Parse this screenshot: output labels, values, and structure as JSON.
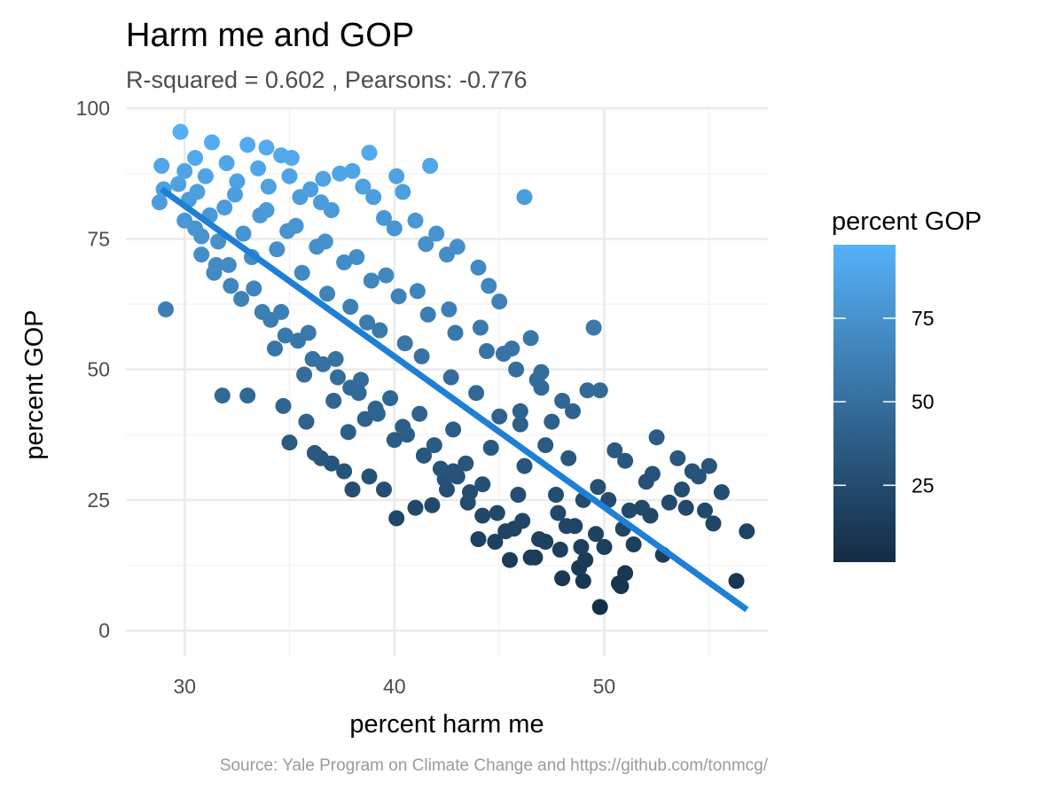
{
  "chart_data": {
    "type": "scatter",
    "title": "Harm me and GOP",
    "subtitle": "R-squared =  0.602 , Pearsons: -0.776",
    "xlabel": "percent harm me",
    "ylabel": "percent GOP",
    "caption": "Source: Yale Program on Climate Change and https://github.com/tonmcg/",
    "xlim": [
      27.2,
      57.8
    ],
    "ylim": [
      -4.9,
      100.2
    ],
    "xticks": [
      30,
      40,
      50
    ],
    "yticks": [
      0,
      25,
      50,
      75,
      100
    ],
    "grid": true,
    "legend": {
      "title": "percent GOP",
      "placement": "right",
      "min": 2,
      "max": 97,
      "ticks": [
        25,
        50,
        75
      ],
      "color_low": "#132B43",
      "color_high": "#56B1F7"
    },
    "trend_line": {
      "x": [
        28.9,
        56.8
      ],
      "y": [
        84.5,
        4.0
      ],
      "color": "#1e7fd6"
    },
    "points": {
      "x": [
        29.8,
        28.9,
        31.3,
        33.0,
        33.9,
        34.6,
        35.1,
        36.6,
        37.4,
        38.0,
        38.5,
        38.8,
        39.0,
        40.1,
        40.4,
        41.7,
        46.2,
        28.8,
        29.0,
        30.0,
        30.5,
        31.0,
        32.0,
        32.5,
        33.5,
        34.0,
        35.0,
        35.5,
        36.0,
        36.5,
        37.0,
        39.5,
        40.0,
        41.0,
        41.5,
        42.0,
        42.5,
        43.0,
        44.0,
        44.5,
        45.0,
        46.5,
        47.0,
        48.0,
        49.2,
        49.8,
        50.5,
        51.0,
        52.5,
        53.5,
        54.5,
        55.0,
        55.2,
        56.8,
        56.3,
        54.8,
        53.7,
        52.0,
        51.2,
        50.8,
        49.8,
        49.0,
        48.0,
        46.5,
        45.5,
        44.8,
        44.0,
        43.5,
        42.5,
        41.8,
        41.0,
        40.1,
        39.5,
        38.8,
        37.6,
        36.5,
        35.0,
        33.0,
        31.8,
        29.1,
        49.5,
        47.5,
        46.8,
        46.0,
        45.2,
        48.5,
        50.2,
        51.8,
        52.3,
        48.2,
        47.7,
        50.0,
        52.2,
        49.7,
        49.0,
        48.9,
        51.0,
        50.7,
        47.2,
        46.7,
        45.3,
        44.2,
        43.0,
        42.2,
        38.0,
        37.0,
        36.2,
        34.7,
        35.8,
        37.8,
        30.5,
        30.8,
        31.5,
        32.2,
        31.2,
        30.2,
        30.0,
        31.6,
        32.8,
        33.2,
        34.4,
        35.6,
        36.8,
        37.9,
        38.7,
        39.3,
        40.5,
        41.3,
        42.7,
        43.9,
        45.0,
        46.0,
        47.2,
        48.3,
        29.7,
        30.6,
        31.9,
        33.6,
        34.9,
        36.3,
        37.6,
        38.9,
        40.2,
        41.6,
        42.9,
        44.4,
        45.8,
        47.0,
        32.4,
        33.9,
        35.3,
        36.7,
        38.2,
        39.6,
        41.1,
        42.6,
        44.1,
        45.6,
        30.8,
        32.1,
        33.3,
        34.6,
        35.9,
        37.2,
        38.4,
        39.8,
        41.2,
        42.8,
        44.6,
        46.2,
        31.4,
        32.7,
        34.1,
        35.4,
        36.6,
        37.9,
        39.1,
        40.4,
        41.9,
        43.4,
        34.3,
        35.7,
        37.1,
        38.6,
        40.0,
        41.4,
        42.8,
        44.2,
        45.9,
        47.8,
        48.6,
        49.6,
        51.4,
        52.8,
        53.9,
        55.6,
        54.2,
        53.1,
        50.9,
        49.1,
        48.8,
        47.9,
        46.9,
        46.1,
        45.7,
        44.9,
        43.6,
        42.4,
        41.4,
        40.6,
        39.2,
        38.3,
        37.3,
        36.1,
        34.8,
        33.7
      ],
      "y": [
        95.5,
        89.0,
        93.5,
        93.0,
        92.5,
        91.0,
        90.5,
        86.5,
        87.5,
        88.0,
        85.0,
        91.5,
        83.0,
        87.0,
        84.0,
        89.0,
        83.0,
        82.0,
        84.5,
        88.0,
        90.5,
        87.0,
        89.5,
        86.0,
        88.5,
        85.0,
        87.0,
        83.0,
        84.5,
        82.0,
        80.5,
        79.0,
        77.0,
        78.5,
        74.0,
        76.0,
        72.0,
        73.5,
        69.5,
        66.0,
        63.0,
        56.0,
        49.5,
        44.0,
        46.0,
        46.0,
        34.5,
        32.5,
        37.0,
        33.0,
        29.5,
        31.5,
        20.5,
        19.0,
        9.5,
        23.0,
        27.0,
        28.5,
        23.0,
        8.5,
        4.5,
        9.5,
        10.0,
        14.0,
        13.5,
        17.0,
        17.5,
        24.5,
        27.0,
        24.0,
        23.5,
        21.5,
        27.0,
        29.5,
        30.5,
        33.0,
        36.0,
        45.0,
        45.0,
        61.5,
        58.0,
        40.0,
        48.0,
        42.0,
        53.0,
        42.0,
        25.0,
        23.5,
        30.0,
        20.0,
        26.0,
        16.0,
        22.0,
        27.5,
        25.0,
        16.0,
        11.0,
        9.0,
        17.0,
        14.0,
        19.0,
        22.0,
        29.5,
        31.0,
        27.0,
        32.0,
        34.0,
        43.0,
        40.0,
        38.0,
        77.0,
        72.0,
        70.0,
        66.0,
        79.5,
        82.5,
        78.5,
        74.5,
        76.0,
        71.5,
        73.0,
        68.5,
        64.5,
        62.0,
        59.0,
        57.5,
        55.0,
        52.5,
        48.5,
        45.5,
        41.0,
        39.5,
        35.5,
        33.0,
        85.5,
        84.0,
        81.0,
        79.5,
        76.5,
        73.5,
        70.5,
        67.0,
        64.0,
        60.5,
        57.0,
        53.5,
        50.0,
        46.5,
        83.5,
        80.5,
        77.5,
        74.5,
        71.5,
        68.0,
        65.0,
        61.5,
        58.0,
        54.0,
        75.5,
        70.0,
        65.5,
        61.0,
        57.0,
        52.0,
        48.0,
        44.5,
        41.5,
        38.5,
        35.0,
        31.5,
        68.5,
        63.5,
        59.5,
        55.5,
        51.0,
        46.5,
        42.5,
        39.0,
        35.5,
        32.0,
        54.0,
        49.0,
        44.0,
        40.5,
        36.5,
        33.5,
        30.5,
        28.0,
        26.0,
        22.5,
        20.0,
        18.5,
        16.5,
        14.5,
        23.5,
        26.5,
        30.5,
        24.5,
        19.5,
        13.5,
        12.0,
        15.5,
        17.5,
        21.0,
        19.5,
        22.5,
        26.5,
        29.0,
        33.5,
        37.5,
        41.5,
        45.5,
        48.5,
        52.0,
        56.5,
        61.0
      ]
    }
  }
}
